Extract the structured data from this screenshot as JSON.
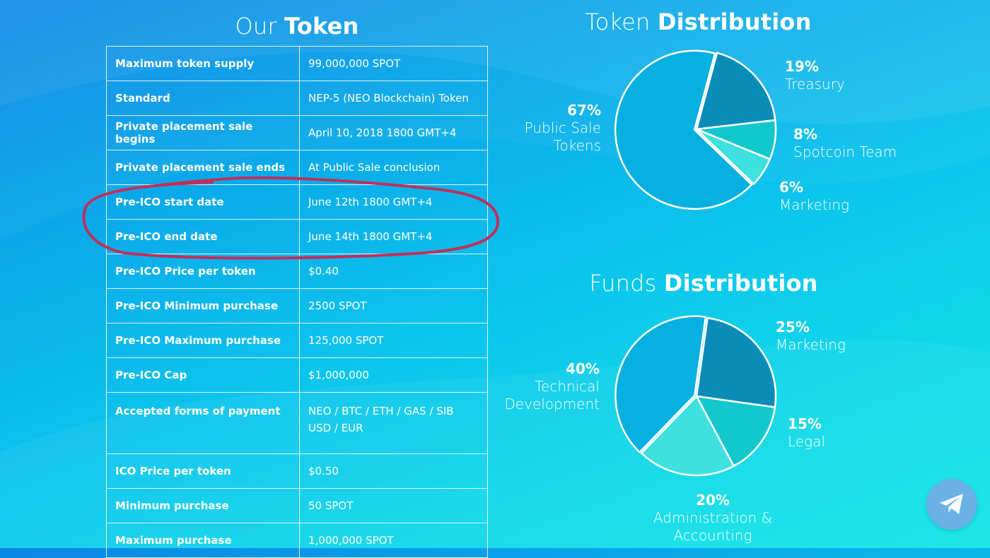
{
  "token_section": {
    "title_light": "Our",
    "title_bold": "Token",
    "rows": [
      {
        "label": "Maximum token supply",
        "value": "99,000,000 SPOT"
      },
      {
        "label": "Standard",
        "value": "NEP-5 (NEO Blockchain) Token"
      },
      {
        "label": "Private placement sale begins",
        "value": "April 10, 2018 1800 GMT+4"
      },
      {
        "label": "Private placement sale ends",
        "value": "At Public Sale conclusion"
      },
      {
        "label": "Pre-ICO start date",
        "value": "June 12th 1800 GMT+4"
      },
      {
        "label": "Pre-ICO end date",
        "value": "June 14th 1800 GMT+4"
      },
      {
        "label": "Pre-ICO Price per token",
        "value": "$0.40"
      },
      {
        "label": "Pre-ICO Minimum purchase",
        "value": "2500 SPOT"
      },
      {
        "label": "Pre-ICO Maximum purchase",
        "value": "125,000 SPOT"
      },
      {
        "label": "Pre-ICO Cap",
        "value": "$1,000,000"
      },
      {
        "label": "Accepted forms of payment",
        "value": "NEO / BTC / ETH / GAS / SIB",
        "value2": "USD / EUR"
      },
      {
        "label": "ICO Price per token",
        "value": "$0.50"
      },
      {
        "label": "Minimum purchase",
        "value": "50 SPOT"
      },
      {
        "label": "Maximum purchase",
        "value": "1,000,000 SPOT"
      }
    ]
  },
  "token_distribution": {
    "title_light": "Token",
    "title_bold": "Distribution",
    "slices": [
      {
        "pct": "67%",
        "name": "Public Sale",
        "name2": "Tokens",
        "value": 67,
        "color": "#06b0e0"
      },
      {
        "pct": "19%",
        "name": "Treasury",
        "value": 19,
        "color": "#0a8cb8"
      },
      {
        "pct": "8%",
        "name": "Spotcoin Team",
        "value": 8,
        "color": "#12c8cc"
      },
      {
        "pct": "6%",
        "name": "Marketing",
        "value": 6,
        "color": "#3ee0e0"
      }
    ]
  },
  "funds_distribution": {
    "title_light": "Funds",
    "title_bold": "Distribution",
    "slices": [
      {
        "pct": "40%",
        "name": "Technical",
        "name2": "Development",
        "value": 40,
        "color": "#06b0e0"
      },
      {
        "pct": "25%",
        "name": "Marketing",
        "value": 25,
        "color": "#0a8cb8"
      },
      {
        "pct": "15%",
        "name": "Legal",
        "value": 15,
        "color": "#12c8cc"
      },
      {
        "pct": "20%",
        "name": "Administration &",
        "name2": "Accounting",
        "value": 20,
        "color": "#3ee0e0"
      }
    ]
  },
  "annotation": {
    "color": "#c0305a"
  },
  "telegram": {
    "icon": "telegram-icon",
    "color": "#6ab1e6"
  }
}
